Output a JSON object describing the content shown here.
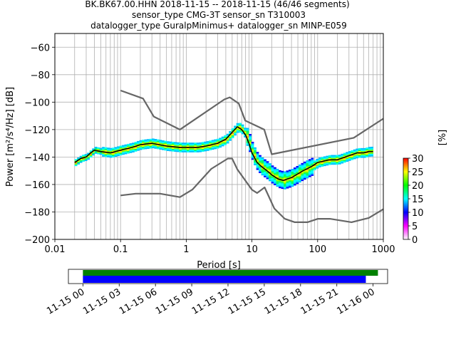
{
  "title": {
    "line1": "BK.BK67.00.HHN   2018-11-15 -- 2018-11-15  (46/46 segments)",
    "line2": "sensor_type CMG-3T sensor_sn T310003",
    "line3": "datalogger_type GuralpMinimus+ datalogger_sn MINP-E059"
  },
  "chart_data": {
    "type": "heatmap",
    "xlabel": "Period [s]",
    "ylabel": "Power [m²/s⁴/Hz] [dB]",
    "xscale": "log",
    "xlim": [
      0.01,
      1000
    ],
    "ylim": [
      -200,
      -50
    ],
    "x_ticks": [
      {
        "v": 0.01,
        "label": "0.01"
      },
      {
        "v": 0.1,
        "label": "0.1"
      },
      {
        "v": 1,
        "label": "1"
      },
      {
        "v": 10,
        "label": "10"
      },
      {
        "v": 100,
        "label": "100"
      },
      {
        "v": 1000,
        "label": "1000"
      }
    ],
    "y_ticks": [
      {
        "v": -60,
        "label": "−60"
      },
      {
        "v": -80,
        "label": "−80"
      },
      {
        "v": -100,
        "label": "−100"
      },
      {
        "v": -120,
        "label": "−120"
      },
      {
        "v": -140,
        "label": "−140"
      },
      {
        "v": -160,
        "label": "−160"
      },
      {
        "v": -180,
        "label": "−180"
      },
      {
        "v": -200,
        "label": "−200"
      }
    ],
    "grid": true,
    "high_noise_model": {
      "x": [
        0.1,
        0.22,
        0.32,
        0.8,
        3.8,
        4.6,
        6.3,
        7.9,
        15.4,
        20,
        354.8,
        1000
      ],
      "y": [
        -91.5,
        -97.4,
        -110.5,
        -120,
        -98,
        -96.5,
        -101,
        -113.5,
        -120,
        -138,
        -126,
        -112
      ]
    },
    "low_noise_model": {
      "x": [
        0.1,
        0.17,
        0.4,
        0.8,
        1.24,
        2.4,
        4.3,
        5,
        6,
        10,
        12,
        15.6,
        21.9,
        31.6,
        45,
        70,
        101,
        154,
        328,
        600,
        1000
      ],
      "y": [
        -168,
        -166.7,
        -166.7,
        -169.2,
        -163.7,
        -148.6,
        -141.1,
        -141.1,
        -149,
        -163.8,
        -166.2,
        -162.1,
        -177.5,
        -185,
        -187.5,
        -187.5,
        -185,
        -185,
        -187.5,
        -184.4,
        -178
      ]
    },
    "mode_curve": {
      "x": [
        0.02,
        0.025,
        0.03,
        0.035,
        0.04,
        0.05,
        0.07,
        0.1,
        0.15,
        0.2,
        0.3,
        0.5,
        0.8,
        1,
        1.5,
        2,
        3,
        4,
        5,
        6,
        7,
        8,
        9,
        10,
        12,
        14,
        17,
        20,
        25,
        30,
        40,
        60,
        80,
        100,
        150,
        200,
        300,
        400,
        500,
        600,
        700
      ],
      "y": [
        -144,
        -141,
        -140,
        -137,
        -135,
        -136,
        -137,
        -135,
        -133,
        -131,
        -130,
        -132,
        -133,
        -133,
        -133,
        -132,
        -130,
        -127,
        -122,
        -118,
        -120,
        -124,
        -130,
        -137,
        -144,
        -147,
        -150,
        -153,
        -156,
        -157,
        -155,
        -150,
        -147,
        -144,
        -142,
        -142,
        -139,
        -137,
        -137,
        -136,
        -136
      ]
    },
    "colorbar": {
      "label": "[%]",
      "ticks": [
        0,
        5,
        10,
        15,
        20,
        25,
        30
      ],
      "tick_labels": [
        "0",
        "5",
        "10",
        "15",
        "20",
        "25",
        "30"
      ],
      "range": [
        0,
        30
      ],
      "colors": [
        "#ffffff",
        "#ff00ff",
        "#0000ff",
        "#00ffff",
        "#00ff00",
        "#ffff00",
        "#ff0000"
      ]
    },
    "data_availability": {
      "tick_labels": [
        "11-15 00",
        "11-15 03",
        "11-15 06",
        "11-15 09",
        "11-15 12",
        "11-15 15",
        "11-15 18",
        "11-15 21",
        "11-16 00"
      ],
      "tick_hours": [
        0,
        3,
        6,
        9,
        12,
        15,
        18,
        21,
        24
      ],
      "xlim_hours": [
        -1.2,
        25.2
      ],
      "available_segment_hours": [
        0,
        24.4
      ],
      "used_segment_hours": [
        0,
        23.4
      ],
      "available_color": "#008000",
      "used_color": "#0000ff"
    }
  }
}
